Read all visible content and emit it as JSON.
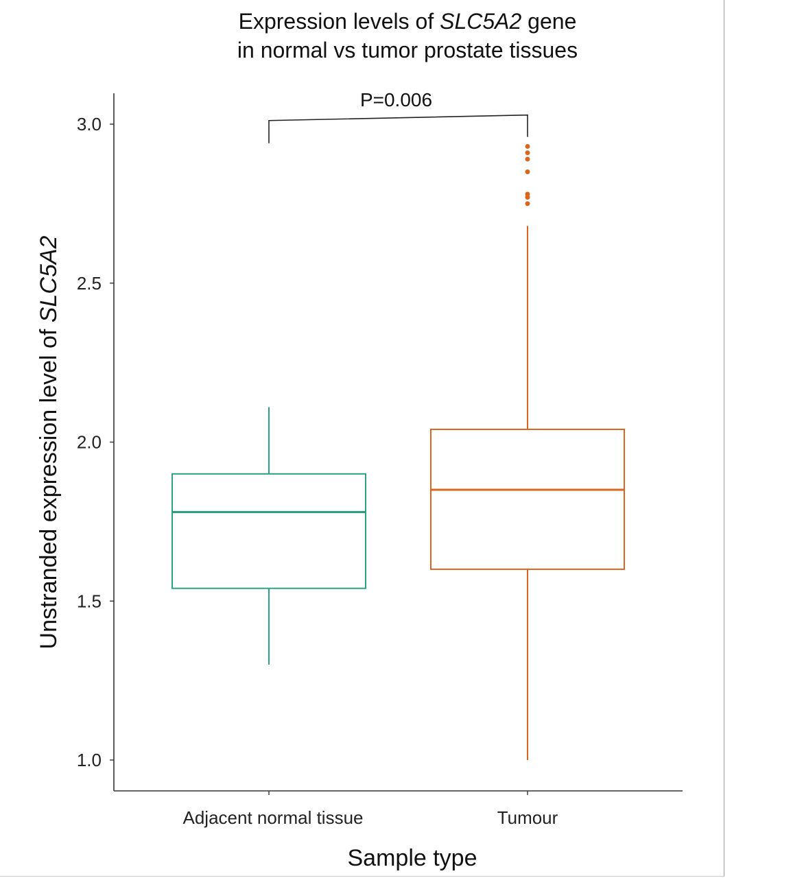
{
  "chart_data": {
    "type": "box",
    "title_line1_prefix": "Expression levels of ",
    "title_gene": "SLC5A2",
    "title_line1_suffix": " gene",
    "title_line2": "in normal vs tumor prostate tissues",
    "xlabel": "Sample type",
    "ylabel_prefix": "Unstranded expression level of ",
    "ylabel_gene": "SLC5A2",
    "ylim": [
      0.9,
      3.1
    ],
    "yticks": [
      1.0,
      1.5,
      2.0,
      2.5,
      3.0
    ],
    "ytick_labels": [
      "1.0",
      "1.5",
      "2.0",
      "2.5",
      "3.0"
    ],
    "categories": [
      "Adjacent normal tissue",
      "Tumour"
    ],
    "boxes": [
      {
        "category": "Adjacent normal tissue",
        "whisker_low": 1.3,
        "q1": 1.54,
        "median": 1.78,
        "q3": 1.9,
        "whisker_high": 2.11,
        "outliers": [],
        "color": "#2aa383"
      },
      {
        "category": "Tumour",
        "whisker_low": 1.0,
        "q1": 1.6,
        "median": 1.85,
        "q3": 2.04,
        "whisker_high": 2.68,
        "outliers": [
          2.75,
          2.77,
          2.78,
          2.85,
          2.89,
          2.91,
          2.93
        ],
        "color": "#d9661f"
      }
    ],
    "significance": {
      "label": "P=0.006",
      "from": 0,
      "to": 1,
      "y_level": 3.02,
      "left_drop": 2.94,
      "right_drop": 2.96
    },
    "grid": false,
    "legend": "none"
  }
}
